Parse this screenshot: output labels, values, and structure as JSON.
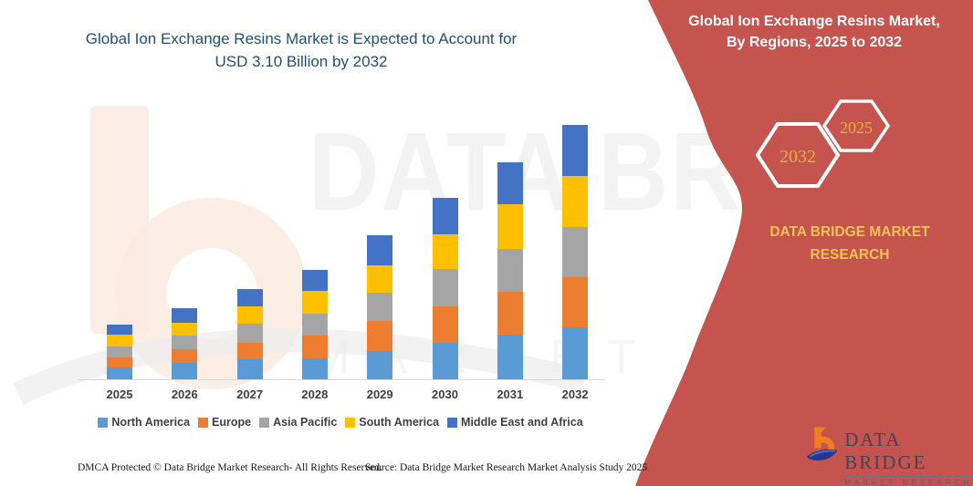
{
  "title": {
    "line1": "Global Ion Exchange Resins Market is Expected to Account for",
    "line2": "USD 3.10 Billion by 2032"
  },
  "chart_data": {
    "type": "bar",
    "stacked": true,
    "title": "Global Ion Exchange Resins Market, By Regions, 2025 to 2032",
    "unit": "USD Billion",
    "categories": [
      "2025",
      "2026",
      "2027",
      "2028",
      "2029",
      "2030",
      "2031",
      "2032"
    ],
    "series": [
      {
        "name": "North America",
        "color": "#5B9BD5",
        "values": [
          0.14,
          0.2,
          0.24,
          0.26,
          0.34,
          0.45,
          0.54,
          0.63
        ]
      },
      {
        "name": "Europe",
        "color": "#ED7D31",
        "values": [
          0.13,
          0.17,
          0.21,
          0.27,
          0.37,
          0.44,
          0.53,
          0.62
        ]
      },
      {
        "name": "Asia Pacific",
        "color": "#A5A5A5",
        "values": [
          0.13,
          0.16,
          0.23,
          0.27,
          0.35,
          0.45,
          0.52,
          0.61
        ]
      },
      {
        "name": "South America",
        "color": "#FFC000",
        "values": [
          0.14,
          0.16,
          0.21,
          0.28,
          0.33,
          0.43,
          0.54,
          0.62
        ]
      },
      {
        "name": "Middle East and Africa",
        "color": "#4472C4",
        "values": [
          0.13,
          0.18,
          0.21,
          0.25,
          0.37,
          0.44,
          0.52,
          0.62
        ]
      }
    ],
    "totals_estimated": [
      0.67,
      0.87,
      1.1,
      1.33,
      1.76,
      2.21,
      2.65,
      3.1
    ],
    "ylim": [
      0,
      3.2
    ],
    "grid": false,
    "legend_position": "bottom"
  },
  "right_panel": {
    "title_line1": "Global Ion Exchange Resins Market,",
    "title_line2": "By Regions, 2025 to 2032",
    "hexagons": [
      {
        "label": "2032"
      },
      {
        "label": "2025"
      }
    ],
    "brand_line1": "DATA BRIDGE MARKET",
    "brand_line2": "RESEARCH",
    "bg_color": "#C5534E",
    "gold_color": "#E6AF3F"
  },
  "watermark": {
    "line1": "DATA BRIDGE",
    "line2": "MARKET RESEARCH"
  },
  "logo": {
    "name": "DATA BRIDGE",
    "sub": "MARKET RESEARCH"
  },
  "footer": {
    "dmca": "DMCA Protected © Data Bridge Market Research- All Rights Reserved.",
    "source": "Source: Data Bridge Market Research Market Analysis Study 2025"
  }
}
